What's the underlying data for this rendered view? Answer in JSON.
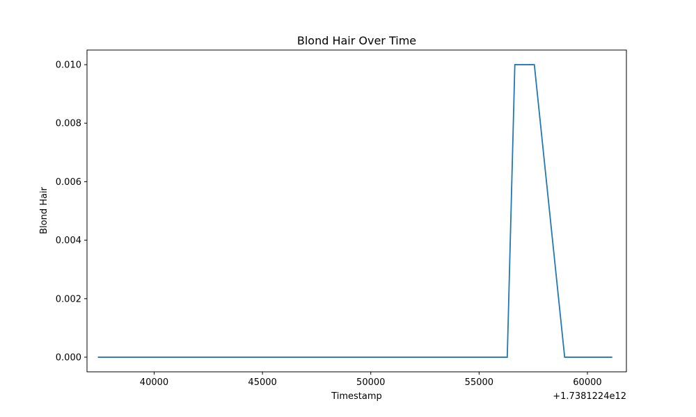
{
  "chart_data": {
    "type": "line",
    "title": "Blond Hair Over Time",
    "xlabel": "Timestamp",
    "ylabel": "Blond Hair",
    "x_offset_label": "+1.7381224e12",
    "xlim": [
      36900,
      61800
    ],
    "ylim": [
      -0.0005,
      0.0105
    ],
    "x_ticks": [
      40000,
      45000,
      50000,
      55000,
      60000
    ],
    "x_tick_labels": [
      "40000",
      "45000",
      "50000",
      "55000",
      "60000"
    ],
    "y_ticks": [
      0.0,
      0.002,
      0.004,
      0.006,
      0.008,
      0.01
    ],
    "y_tick_labels": [
      "0.000",
      "0.002",
      "0.004",
      "0.006",
      "0.008",
      "0.010"
    ],
    "grid": false,
    "series": [
      {
        "color": "#1f77b4",
        "x": [
          37400,
          56300,
          56650,
          57550,
          58950,
          61150
        ],
        "y": [
          0.0,
          0.0,
          0.01,
          0.01,
          0.0,
          0.0
        ]
      }
    ]
  }
}
